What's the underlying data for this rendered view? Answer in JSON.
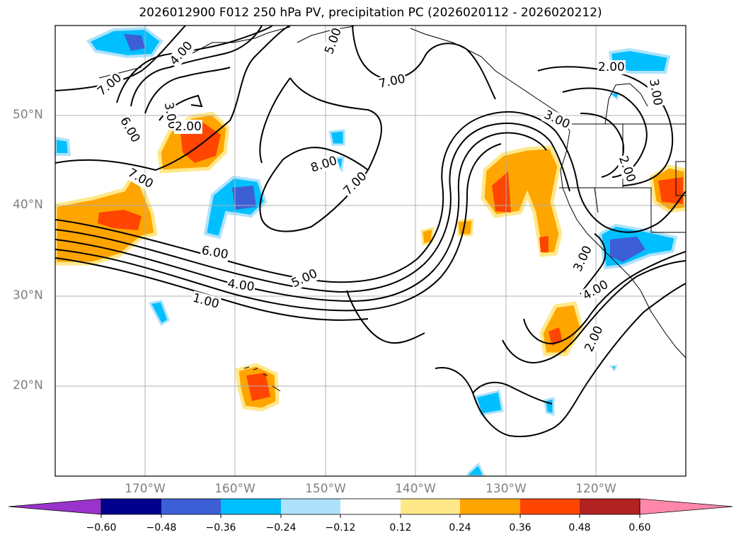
{
  "title": "2026012900 F012 250 hPa PV, precipitation PC (2026020112 - 2026020212)",
  "lat_labels": [
    "50°N",
    "40°N",
    "30°N",
    "20°N"
  ],
  "lon_labels": [
    "170°W",
    "160°W",
    "150°W",
    "140°W",
    "130°W",
    "120°W"
  ],
  "pv_contour_labels": [
    "7.00",
    "4.00",
    "5.00",
    "7.00",
    "3.00",
    "2.00",
    "6.00",
    "7.00",
    "8.00",
    "7.00",
    "6.00",
    "5.00",
    "4.00",
    "1.00",
    "3.00",
    "2.00",
    "3.00",
    "2.00",
    "3.00",
    "4.00",
    "2.00"
  ],
  "colorbar": {
    "tick_labels": [
      "−0.60",
      "−0.48",
      "−0.36",
      "−0.24",
      "−0.12",
      "0.12",
      "0.24",
      "0.36",
      "0.48",
      "0.60"
    ],
    "colors": [
      "#9933cc",
      "#00008b",
      "#3c5fd6",
      "#00bfff",
      "#aee2fa",
      "#ffffff",
      "#ffe88a",
      "#ffa500",
      "#ff4500",
      "#b22222",
      "#ff88aa"
    ]
  }
}
